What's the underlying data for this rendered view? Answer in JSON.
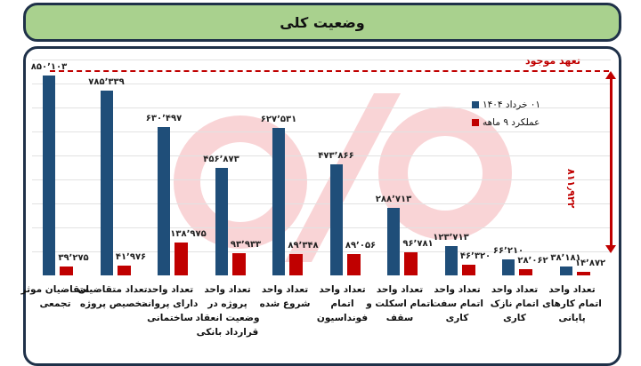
{
  "header": {
    "title": "وضعیت کلی"
  },
  "commitment": {
    "label": "تعهد موجود",
    "gap_label": "۸۱۱٫۹۲۲"
  },
  "legend": [
    {
      "label": "۰۱ خرداد ۱۴۰۴",
      "color": "#1f4e79"
    },
    {
      "label": "عملکرد ۹ ماهه",
      "color": "#c00000"
    }
  ],
  "chart_data": {
    "type": "bar",
    "title": "وضعیت کلی",
    "xlabel": "",
    "ylabel": "",
    "ylim": [
      0,
      900000
    ],
    "grid": true,
    "legend_position": "top-right",
    "categories": [
      "متقاضیان موثر تجمعی",
      "تعداد متقاضیان تخصیص پروژه",
      "تعداد واحد دارای پروانه ساختمانی",
      "تعداد واحد پروژه در وضعیت انعقاد قرارداد بانکی",
      "تعداد واحد شروع شده",
      "تعداد واحد اتمام فونداسیون",
      "تعداد واحد اتمام اسکلت و سقف",
      "تعداد واحد اتمام سفت کاری",
      "تعداد واحد اتمام نازک کاری",
      "تعداد واحد اتمام کارهای پایانی"
    ],
    "series": [
      {
        "name": "۰۱ خرداد ۱۴۰۴",
        "color": "#1f4e79",
        "values": [
          850103,
          785339,
          630497,
          456873,
          627531,
          473866,
          288713,
          123713,
          66210,
          38181
        ],
        "labels": [
          "۸۵۰٬۱۰۳",
          "۷۸۵٬۳۳۹",
          "۶۳۰٬۴۹۷",
          "۴۵۶٬۸۷۳",
          "۶۲۷٬۵۳۱",
          "۴۷۳٬۸۶۶",
          "۲۸۸٬۷۱۳",
          "۱۲۳٬۷۱۳",
          "۶۶٬۲۱۰",
          "۳۸٬۱۸۱"
        ]
      },
      {
        "name": "عملکرد ۹ ماهه",
        "color": "#c00000",
        "values": [
          39275,
          41976,
          138975,
          93933,
          89348,
          89056,
          96781,
          46320,
          28062,
          14872
        ],
        "labels": [
          "۳۹٬۲۷۵",
          "۴۱٬۹۷۶",
          "۱۳۸٬۹۷۵",
          "۹۳٬۹۳۳",
          "۸۹٬۳۴۸",
          "۸۹٬۰۵۶",
          "۹۶٬۷۸۱",
          "۴۶٬۳۲۰",
          "۲۸٬۰۶۲",
          "۱۴٬۸۷۲"
        ]
      }
    ],
    "annotations": [
      {
        "text": "تعهد موجود",
        "type": "dashed-line",
        "value": 850103
      },
      {
        "text": "۸۱۱٫۹۲۲",
        "type": "double-arrow",
        "from": 38181,
        "to": 850103
      }
    ]
  }
}
